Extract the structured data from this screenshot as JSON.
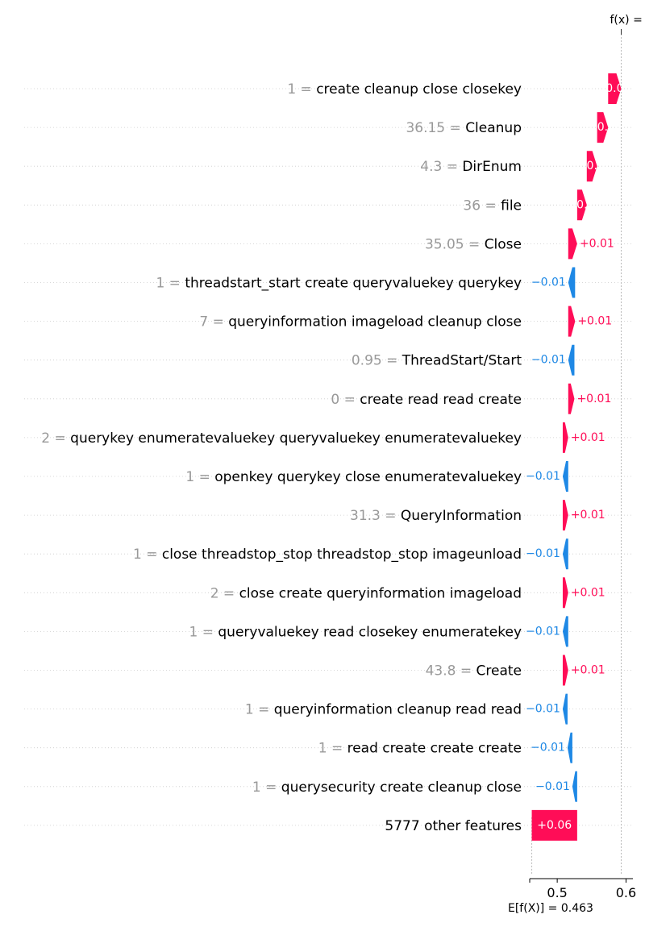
{
  "chart_data": {
    "type": "waterfall",
    "title": "f(x) =",
    "base_label": "E[f(X)] = 0.463",
    "base_value": 0.463,
    "xlim": [
      0.46,
      0.61
    ],
    "xticks": [
      0.5,
      0.6
    ],
    "xtick_labels": [
      "0.5",
      "0.6"
    ],
    "colors": {
      "positive": "#ff0d57",
      "negative": "#1e88e5",
      "value_gray": "#999999",
      "label": "#000000"
    },
    "rows": [
      {
        "value": "1 =",
        "feature": "create cleanup close closekey",
        "shap_label": "0.0",
        "start": 0.574,
        "end": 0.593
      },
      {
        "value": "36.15 =",
        "feature": "Cleanup",
        "shap_label": "0.",
        "start": 0.558,
        "end": 0.574
      },
      {
        "value": "4.3 =",
        "feature": "DirEnum",
        "shap_label": "0.",
        "start": 0.543,
        "end": 0.558
      },
      {
        "value": "36 =",
        "feature": "file",
        "shap_label": "0.",
        "start": 0.529,
        "end": 0.543
      },
      {
        "value": "35.05 =",
        "feature": "Close",
        "shap_label": "+0.01",
        "start": 0.516,
        "end": 0.529
      },
      {
        "value": "1 =",
        "feature": "threadstart_start create queryvaluekey querykey",
        "shap_label": "−0.01",
        "start": 0.526,
        "end": 0.516
      },
      {
        "value": "7 =",
        "feature": "queryinformation imageload cleanup close",
        "shap_label": "+0.01",
        "start": 0.516,
        "end": 0.526
      },
      {
        "value": "0.95 =",
        "feature": "ThreadStart/Start",
        "shap_label": "−0.01",
        "start": 0.525,
        "end": 0.516
      },
      {
        "value": "0 =",
        "feature": "create read read create",
        "shap_label": "+0.01",
        "start": 0.516,
        "end": 0.525
      },
      {
        "value": "2 =",
        "feature": "querykey enumeratevaluekey queryvaluekey enumeratevaluekey",
        "shap_label": "+0.01",
        "start": 0.508,
        "end": 0.516
      },
      {
        "value": "1 =",
        "feature": "openkey querykey close enumeratevaluekey",
        "shap_label": "−0.01",
        "start": 0.516,
        "end": 0.508
      },
      {
        "value": "31.3 =",
        "feature": "QueryInformation",
        "shap_label": "+0.01",
        "start": 0.508,
        "end": 0.516
      },
      {
        "value": "1 =",
        "feature": "close threadstop_stop threadstop_stop imageunload",
        "shap_label": "−0.01",
        "start": 0.516,
        "end": 0.508
      },
      {
        "value": "2 =",
        "feature": "close create queryinformation imageload",
        "shap_label": "+0.01",
        "start": 0.508,
        "end": 0.516
      },
      {
        "value": "1 =",
        "feature": "queryvaluekey read closekey enumeratekey",
        "shap_label": "−0.01",
        "start": 0.516,
        "end": 0.508
      },
      {
        "value": "43.8 =",
        "feature": "Create",
        "shap_label": "+0.01",
        "start": 0.508,
        "end": 0.516
      },
      {
        "value": "1 =",
        "feature": "queryinformation cleanup read read",
        "shap_label": "−0.01",
        "start": 0.515,
        "end": 0.508
      },
      {
        "value": "1 =",
        "feature": "read create create create",
        "shap_label": "−0.01",
        "start": 0.522,
        "end": 0.515
      },
      {
        "value": "1 =",
        "feature": "querysecurity create cleanup close",
        "shap_label": "−0.01",
        "start": 0.529,
        "end": 0.522
      },
      {
        "value": "",
        "feature": "5777 other features",
        "shap_label": "+0.06",
        "start": 0.463,
        "end": 0.529
      }
    ]
  }
}
